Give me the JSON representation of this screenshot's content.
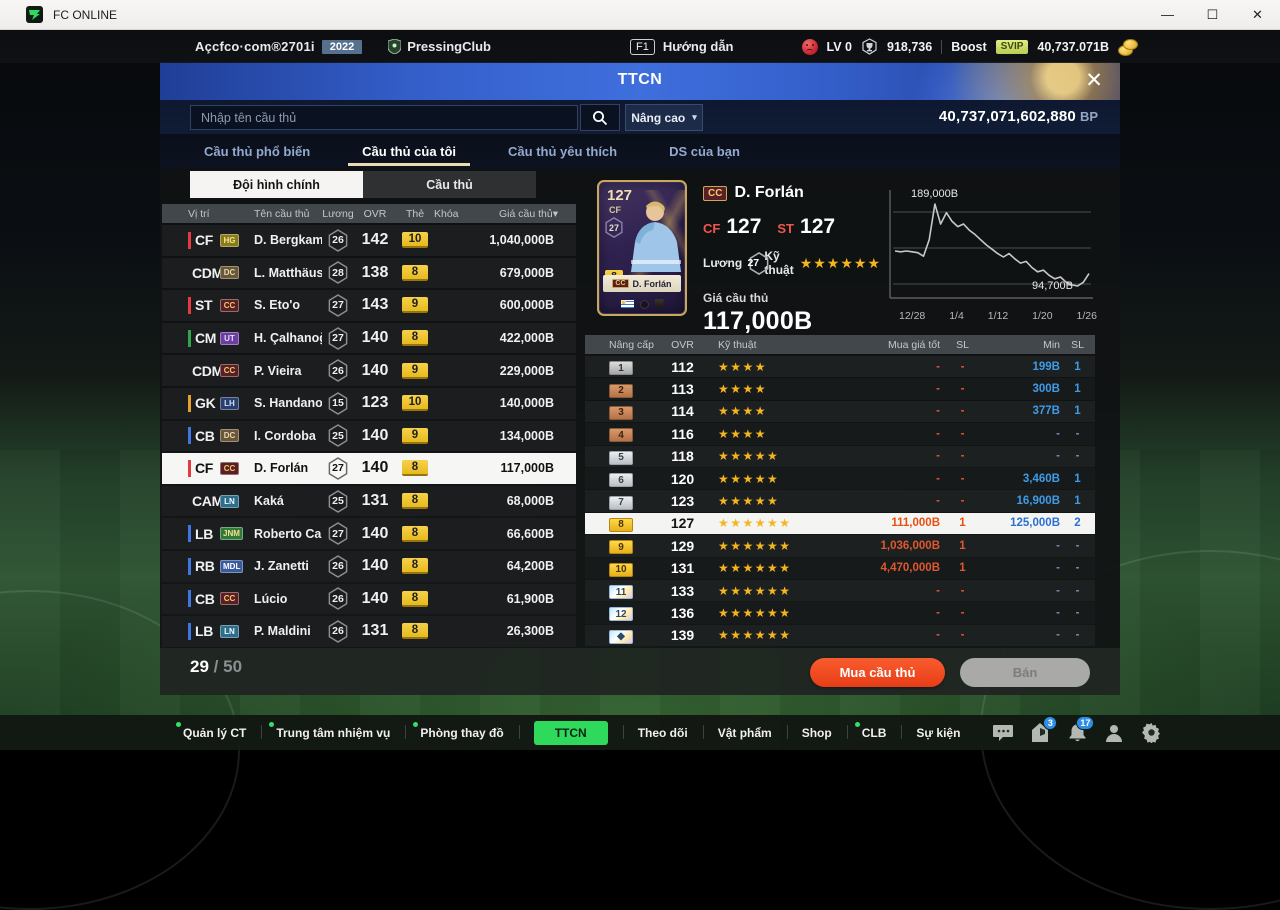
{
  "window": {
    "title": "FC ONLINE",
    "minimize": "—",
    "maximize": "☐",
    "close": "✕"
  },
  "topbar": {
    "account": "Açcfco·com®2701i",
    "year": "2022",
    "club_name": "PressingClub",
    "f1_key": "F1",
    "help_label": "Hướng dẫn",
    "level": "LV 0",
    "trophies": "918,736",
    "boost_label": "Boost",
    "svip_label": "SVIP",
    "coins_total": "40,737.071B"
  },
  "panel": {
    "title": "TTCN",
    "close_glyph": "✕",
    "search_placeholder": "Nhập tên cầu thủ",
    "advanced_label": "Nâng cao",
    "bp_total": "40,737,071,602,880",
    "bp_unit": "BP",
    "tabs": [
      {
        "label": "Cầu thủ phổ biến",
        "active": false
      },
      {
        "label": "Cầu thủ của tôi",
        "active": true
      },
      {
        "label": "Cầu thủ yêu thích",
        "active": false
      },
      {
        "label": "DS của bạn",
        "active": false
      }
    ],
    "subtabs": [
      {
        "label": "Đội hình chính",
        "active": true
      },
      {
        "label": "Cầu thủ",
        "active": false
      }
    ],
    "list_columns": [
      "Vị trí",
      "Tên cầu thủ",
      "Lương",
      "OVR",
      "Thẻ",
      "Khóa",
      "Giá cầu thủ▾"
    ],
    "players": [
      {
        "pos": "CF",
        "pos_color": "#e23b41",
        "badge": "HG",
        "badge_bg": "#8a7a1e",
        "badge_fg": "#f5e38a",
        "name": "D. Bergkamp",
        "salary": "26",
        "ovr": "142",
        "card": "10",
        "price": "1,040,000B",
        "selected": false
      },
      {
        "pos": "CDM",
        "pos_color": "#2fa452",
        "badge": "DC",
        "badge_bg": "#6b5638",
        "badge_fg": "#e8d7b0",
        "name": "L. Matthäus",
        "salary": "28",
        "ovr": "138",
        "card": "8",
        "price": "679,000B",
        "selected": false
      },
      {
        "pos": "ST",
        "pos_color": "#e23b41",
        "badge": "CC",
        "badge_bg": "#5a1f24",
        "badge_fg": "#f0c96a",
        "name": "S. Eto'o",
        "salary": "27",
        "ovr": "143",
        "card": "9",
        "price": "600,000B",
        "selected": false
      },
      {
        "pos": "CM",
        "pos_color": "#2fa452",
        "badge": "UT",
        "badge_bg": "#6a3fa0",
        "badge_fg": "#e8dcf8",
        "name": "H. Çalhanoğlu",
        "salary": "27",
        "ovr": "140",
        "card": "8",
        "price": "422,000B",
        "selected": false
      },
      {
        "pos": "CDM",
        "pos_color": "#2fa452",
        "badge": "CC",
        "badge_bg": "#5a1f24",
        "badge_fg": "#f0c96a",
        "name": "P. Vieira",
        "salary": "26",
        "ovr": "140",
        "card": "9",
        "price": "229,000B",
        "selected": false
      },
      {
        "pos": "GK",
        "pos_color": "#e8a02c",
        "badge": "LH",
        "badge_bg": "#2a3f6e",
        "badge_fg": "#cfe0f8",
        "name": "S. Handanovič",
        "salary": "15",
        "ovr": "123",
        "card": "10",
        "price": "140,000B",
        "selected": false
      },
      {
        "pos": "CB",
        "pos_color": "#3f77e0",
        "badge": "DC",
        "badge_bg": "#6b5638",
        "badge_fg": "#e8d7b0",
        "name": "I. Cordoba",
        "salary": "25",
        "ovr": "140",
        "card": "9",
        "price": "134,000B",
        "selected": false
      },
      {
        "pos": "CF",
        "pos_color": "#e23b41",
        "badge": "CC",
        "badge_bg": "#5a1f24",
        "badge_fg": "#f0c96a",
        "name": "D. Forlán",
        "salary": "27",
        "ovr": "140",
        "card": "8",
        "price": "117,000B",
        "selected": true
      },
      {
        "pos": "CAM",
        "pos_color": "#2fa452",
        "badge": "LN",
        "badge_bg": "#2f6e8a",
        "badge_fg": "#eafaff",
        "name": "Kaká",
        "salary": "25",
        "ovr": "131",
        "card": "8",
        "price": "68,000B",
        "selected": false
      },
      {
        "pos": "LB",
        "pos_color": "#3f77e0",
        "badge": "JNM",
        "badge_bg": "#2f7a3a",
        "badge_fg": "#f5e38a",
        "name": "Roberto Carlos",
        "salary": "27",
        "ovr": "140",
        "card": "8",
        "price": "66,600B",
        "selected": false
      },
      {
        "pos": "RB",
        "pos_color": "#3f77e0",
        "badge": "MDL",
        "badge_bg": "#3a5a9e",
        "badge_fg": "#ffffff",
        "name": "J. Zanetti",
        "salary": "26",
        "ovr": "140",
        "card": "8",
        "price": "64,200B",
        "selected": false
      },
      {
        "pos": "CB",
        "pos_color": "#3f77e0",
        "badge": "CC",
        "badge_bg": "#5a1f24",
        "badge_fg": "#f0c96a",
        "name": "Lúcio",
        "salary": "26",
        "ovr": "140",
        "card": "8",
        "price": "61,900B",
        "selected": false
      },
      {
        "pos": "LB",
        "pos_color": "#3f77e0",
        "badge": "LN",
        "badge_bg": "#2f6e8a",
        "badge_fg": "#eafaff",
        "name": "P. Maldini",
        "salary": "26",
        "ovr": "131",
        "card": "8",
        "price": "26,300B",
        "selected": false
      }
    ],
    "count_current": "29",
    "count_sep": "/",
    "count_max": "50",
    "detail": {
      "card_ovr": "127",
      "card_pos": "CF",
      "card_salary": "27",
      "card_level": "8",
      "card_badge": "CC",
      "card_name": "D. Forlán",
      "badge": "CC",
      "name": "D. Forlán",
      "pos1_label": "CF",
      "pos1_value": "127",
      "pos2_label": "ST",
      "pos2_value": "127",
      "salary_label": "Lương",
      "salary_value": "27",
      "skill_label": "Kỹ thuật",
      "skill_stars": 6,
      "price_label": "Giá cầu thủ",
      "price_value": "117,000B"
    },
    "upgrade_columns": [
      "Nâng cấp",
      "OVR",
      "Kỹ thuật",
      "Mua giá tốt",
      "SL",
      "Min",
      "SL"
    ],
    "upgrade_rows": [
      {
        "level": "1",
        "tier": "gray",
        "ovr": "112",
        "stars": 4,
        "buy": "-",
        "buy_sl": "-",
        "min": "199B",
        "min_sl": "1",
        "selected": false
      },
      {
        "level": "2",
        "tier": "bronze",
        "ovr": "113",
        "stars": 4,
        "buy": "-",
        "buy_sl": "-",
        "min": "300B",
        "min_sl": "1",
        "selected": false
      },
      {
        "level": "3",
        "tier": "bronze",
        "ovr": "114",
        "stars": 4,
        "buy": "-",
        "buy_sl": "-",
        "min": "377B",
        "min_sl": "1",
        "selected": false
      },
      {
        "level": "4",
        "tier": "bronze",
        "ovr": "116",
        "stars": 4,
        "buy": "-",
        "buy_sl": "-",
        "min": "-",
        "min_sl": "-",
        "selected": false
      },
      {
        "level": "5",
        "tier": "silver",
        "ovr": "118",
        "stars": 5,
        "buy": "-",
        "buy_sl": "-",
        "min": "-",
        "min_sl": "-",
        "selected": false
      },
      {
        "level": "6",
        "tier": "silver",
        "ovr": "120",
        "stars": 5,
        "buy": "-",
        "buy_sl": "-",
        "min": "3,460B",
        "min_sl": "1",
        "selected": false
      },
      {
        "level": "7",
        "tier": "silver",
        "ovr": "123",
        "stars": 5,
        "buy": "-",
        "buy_sl": "-",
        "min": "16,900B",
        "min_sl": "1",
        "selected": false
      },
      {
        "level": "8",
        "tier": "gold",
        "ovr": "127",
        "stars": 6,
        "buy": "111,000B",
        "buy_sl": "1",
        "min": "125,000B",
        "min_sl": "2",
        "selected": true
      },
      {
        "level": "9",
        "tier": "gold",
        "ovr": "129",
        "stars": 6,
        "buy": "1,036,000B",
        "buy_sl": "1",
        "min": "-",
        "min_sl": "-",
        "selected": false
      },
      {
        "level": "10",
        "tier": "gold",
        "ovr": "131",
        "stars": 6,
        "buy": "4,470,000B",
        "buy_sl": "1",
        "min": "-",
        "min_sl": "-",
        "selected": false
      },
      {
        "level": "11",
        "tier": "prism",
        "ovr": "133",
        "stars": 6,
        "buy": "-",
        "buy_sl": "-",
        "min": "-",
        "min_sl": "-",
        "selected": false
      },
      {
        "level": "12",
        "tier": "prism",
        "ovr": "136",
        "stars": 6,
        "buy": "-",
        "buy_sl": "-",
        "min": "-",
        "min_sl": "-",
        "selected": false
      },
      {
        "level": "◆",
        "tier": "prism",
        "ovr": "139",
        "stars": 6,
        "buy": "-",
        "buy_sl": "-",
        "min": "-",
        "min_sl": "-",
        "selected": false
      }
    ],
    "buy_button": "Mua cầu thủ",
    "sell_button": "Bán"
  },
  "chart_data": {
    "type": "line",
    "x_ticks": [
      "12/28",
      "1/4",
      "1/12",
      "1/20",
      "1/26"
    ],
    "values": [
      135,
      134,
      135,
      134,
      133,
      129,
      148,
      189,
      166,
      179,
      169,
      163,
      166,
      159,
      154,
      148,
      142,
      137,
      132,
      128,
      132,
      126,
      121,
      123,
      116,
      111,
      113,
      107,
      103,
      105,
      99,
      96,
      94.7,
      99,
      109
    ],
    "max_label": "189,000B",
    "min_label": "94,700B",
    "ylim": [
      90000,
      200000
    ],
    "unit": "B",
    "grid": true,
    "line_color": "#c8c8c8"
  },
  "bottom_nav": {
    "items": [
      {
        "label": "Quản lý CT",
        "dot": true,
        "active": false
      },
      {
        "label": "Trung tâm nhiệm vụ",
        "dot": true,
        "active": false
      },
      {
        "label": "Phòng thay đồ",
        "dot": true,
        "active": false
      },
      {
        "label": "TTCN",
        "dot": false,
        "active": true
      },
      {
        "label": "Theo dõi",
        "dot": false,
        "active": false
      },
      {
        "label": "Vật phẩm",
        "dot": false,
        "active": false
      },
      {
        "label": "Shop",
        "dot": false,
        "active": false
      },
      {
        "label": "CLB",
        "dot": true,
        "active": false
      },
      {
        "label": "Sự kiện",
        "dot": false,
        "active": false
      }
    ],
    "icons": [
      {
        "name": "chat-icon",
        "badge": ""
      },
      {
        "name": "locker-icon",
        "badge": "3"
      },
      {
        "name": "bell-icon",
        "badge": "17"
      },
      {
        "name": "profile-icon",
        "badge": ""
      },
      {
        "name": "settings-icon",
        "badge": ""
      }
    ]
  }
}
